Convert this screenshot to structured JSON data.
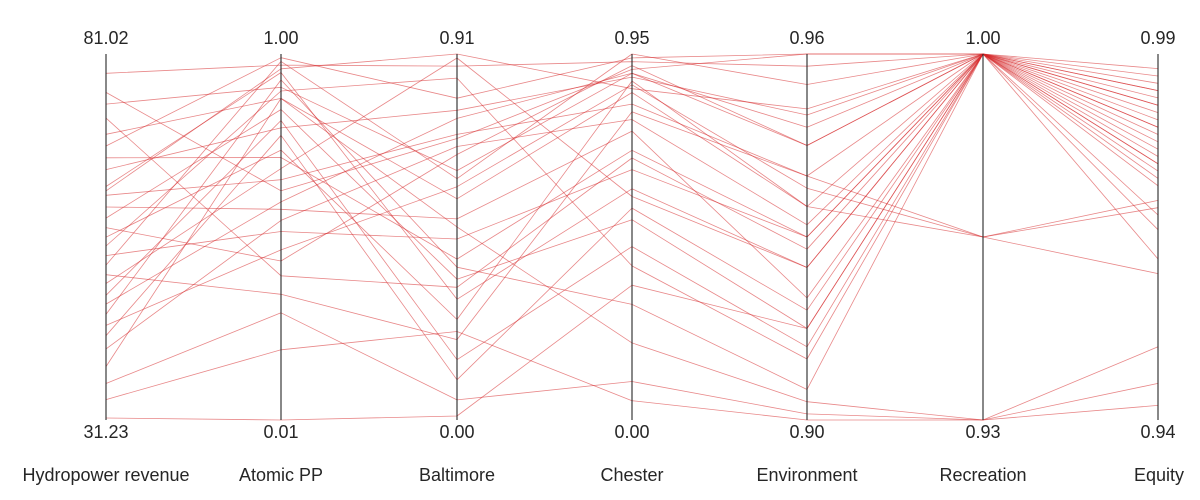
{
  "chart_data": {
    "type": "parallel_coordinates",
    "title": "",
    "line_color": "#d62728",
    "axes": [
      {
        "name": "Hydropower revenue",
        "max_label": "81.02",
        "min_label": "31.23",
        "max": 81.02,
        "min": 31.23
      },
      {
        "name": "Atomic PP",
        "max_label": "1.00",
        "min_label": "0.01",
        "max": 1.0,
        "min": 0.01
      },
      {
        "name": "Baltimore",
        "max_label": "0.91",
        "min_label": "0.00",
        "max": 0.91,
        "min": 0.0
      },
      {
        "name": "Chester",
        "max_label": "0.95",
        "min_label": "0.00",
        "max": 0.95,
        "min": 0.0
      },
      {
        "name": "Environment",
        "max_label": "0.96",
        "min_label": "0.90",
        "max": 0.96,
        "min": 0.9
      },
      {
        "name": "Recreation",
        "max_label": "1.00",
        "min_label": "0.93",
        "max": 1.0,
        "min": 0.93
      },
      {
        "name": "Equity",
        "max_label": "0.99",
        "min_label": "0.94",
        "max": 0.99,
        "min": 0.94
      }
    ],
    "series": [
      {
        "values": [
          78.4,
          0.97,
          0.88,
          0.93,
          0.958,
          1.0,
          0.985
        ]
      },
      {
        "values": [
          74.2,
          0.91,
          0.62,
          0.9,
          0.945,
          1.0,
          0.983
        ]
      },
      {
        "values": [
          70.1,
          0.88,
          0.55,
          0.85,
          0.935,
          1.0,
          0.981
        ]
      },
      {
        "values": [
          68.5,
          0.99,
          0.8,
          0.94,
          0.96,
          1.0,
          0.987
        ]
      },
      {
        "values": [
          66.9,
          0.72,
          0.4,
          0.7,
          0.93,
          1.0,
          0.976
        ]
      },
      {
        "values": [
          65.3,
          0.8,
          0.77,
          0.89,
          0.95,
          1.0,
          0.98
        ]
      },
      {
        "values": [
          63.0,
          0.95,
          0.3,
          0.6,
          0.925,
          1.0,
          0.972
        ]
      },
      {
        "values": [
          61.8,
          0.66,
          0.71,
          0.82,
          0.94,
          0.965,
          0.96
        ]
      },
      {
        "values": [
          60.2,
          0.58,
          0.5,
          0.75,
          0.92,
          1.0,
          0.978
        ]
      },
      {
        "values": [
          58.7,
          0.85,
          0.35,
          0.52,
          0.915,
          1.0,
          0.968
        ]
      },
      {
        "values": [
          57.4,
          0.44,
          0.66,
          0.92,
          0.945,
          1.0,
          0.984
        ]
      },
      {
        "values": [
          56.1,
          0.74,
          0.25,
          0.88,
          0.935,
          0.965,
          0.97
        ]
      },
      {
        "values": [
          54.9,
          0.9,
          0.85,
          0.4,
          0.91,
          1.0,
          0.975
        ]
      },
      {
        "values": [
          53.6,
          0.52,
          0.45,
          0.65,
          0.93,
          1.0,
          0.982
        ]
      },
      {
        "values": [
          52.3,
          0.98,
          0.6,
          0.95,
          0.955,
          1.0,
          0.986
        ]
      },
      {
        "values": [
          51.0,
          0.35,
          0.2,
          0.8,
          0.94,
          1.0,
          0.979
        ]
      },
      {
        "values": [
          49.8,
          0.69,
          0.9,
          0.58,
          0.925,
          1.0,
          0.973
        ]
      },
      {
        "values": [
          48.2,
          0.82,
          0.15,
          0.45,
          0.912,
          1.0,
          0.966
        ]
      },
      {
        "values": [
          47.0,
          0.6,
          0.75,
          0.9,
          0.948,
          1.0,
          0.985
        ]
      },
      {
        "values": [
          45.6,
          0.93,
          0.38,
          0.3,
          0.905,
          1.0,
          0.962
        ]
      },
      {
        "values": [
          44.1,
          0.47,
          0.58,
          0.87,
          0.938,
          0.965,
          0.969
        ]
      },
      {
        "values": [
          42.7,
          0.78,
          0.1,
          0.55,
          0.918,
          1.0,
          0.974
        ]
      },
      {
        "values": [
          40.9,
          0.55,
          0.68,
          0.78,
          0.932,
          1.0,
          0.98
        ]
      },
      {
        "values": [
          38.5,
          0.88,
          0.48,
          0.2,
          0.903,
          0.93,
          0.945
        ]
      },
      {
        "values": [
          36.2,
          0.3,
          0.05,
          0.1,
          0.901,
          0.93,
          0.95
        ]
      },
      {
        "values": [
          34.0,
          0.2,
          0.22,
          0.05,
          0.9,
          0.93,
          0.942
        ]
      },
      {
        "values": [
          31.5,
          0.01,
          0.01,
          0.35,
          0.915,
          1.0,
          0.975
        ]
      },
      {
        "values": [
          75.8,
          0.63,
          0.7,
          0.91,
          0.962,
          1.0,
          0.988
        ]
      },
      {
        "values": [
          72.3,
          0.4,
          0.33,
          0.68,
          0.928,
          1.0,
          0.977
        ]
      },
      {
        "values": [
          62.4,
          0.96,
          0.91,
          0.86,
          0.951,
          1.0,
          0.983
        ]
      }
    ]
  }
}
